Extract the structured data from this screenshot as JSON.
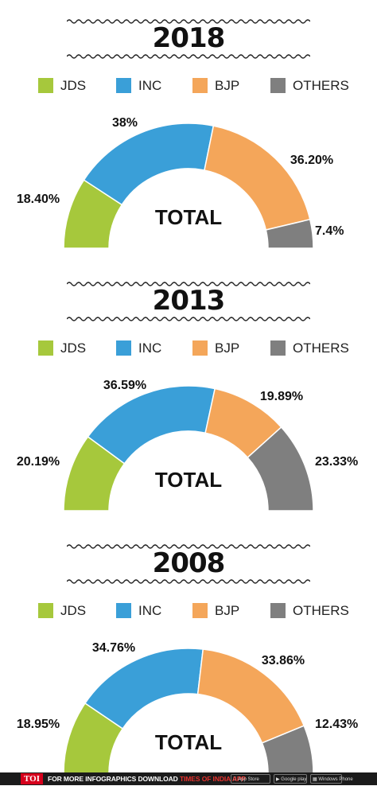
{
  "legend": [
    {
      "label": "JDS",
      "color": "#a6c83c"
    },
    {
      "label": "INC",
      "color": "#3a9fd8"
    },
    {
      "label": "BJP",
      "color": "#f4a65a"
    },
    {
      "label": "OTHERS",
      "color": "#7f7f7f"
    }
  ],
  "center_label": "TOTAL",
  "chart_data": [
    {
      "type": "pie",
      "title": "2018",
      "categories": [
        "JDS",
        "INC",
        "BJP",
        "OTHERS"
      ],
      "values": [
        18.4,
        38,
        36.2,
        7.4
      ],
      "labels": [
        "18.40%",
        "38%",
        "36.20%",
        "7.4%"
      ]
    },
    {
      "type": "pie",
      "title": "2013",
      "categories": [
        "JDS",
        "INC",
        "BJP",
        "OTHERS"
      ],
      "values": [
        20.19,
        36.59,
        19.89,
        23.33
      ],
      "labels": [
        "20.19%",
        "36.59%",
        "19.89%",
        "23.33%"
      ]
    },
    {
      "type": "pie",
      "title": "2008",
      "categories": [
        "JDS",
        "INC",
        "BJP",
        "OTHERS"
      ],
      "values": [
        18.95,
        34.76,
        33.86,
        12.43
      ],
      "labels": [
        "18.95%",
        "34.76%",
        "33.86%",
        "12.43%"
      ]
    }
  ],
  "footer": {
    "brand": "TOI",
    "text_part1": "FOR MORE  INFOGRAPHICS DOWNLOAD ",
    "text_part2": "TIMES OF INDIA  APP",
    "stores": [
      "App Store",
      "Google play",
      "Windows Phone"
    ]
  }
}
